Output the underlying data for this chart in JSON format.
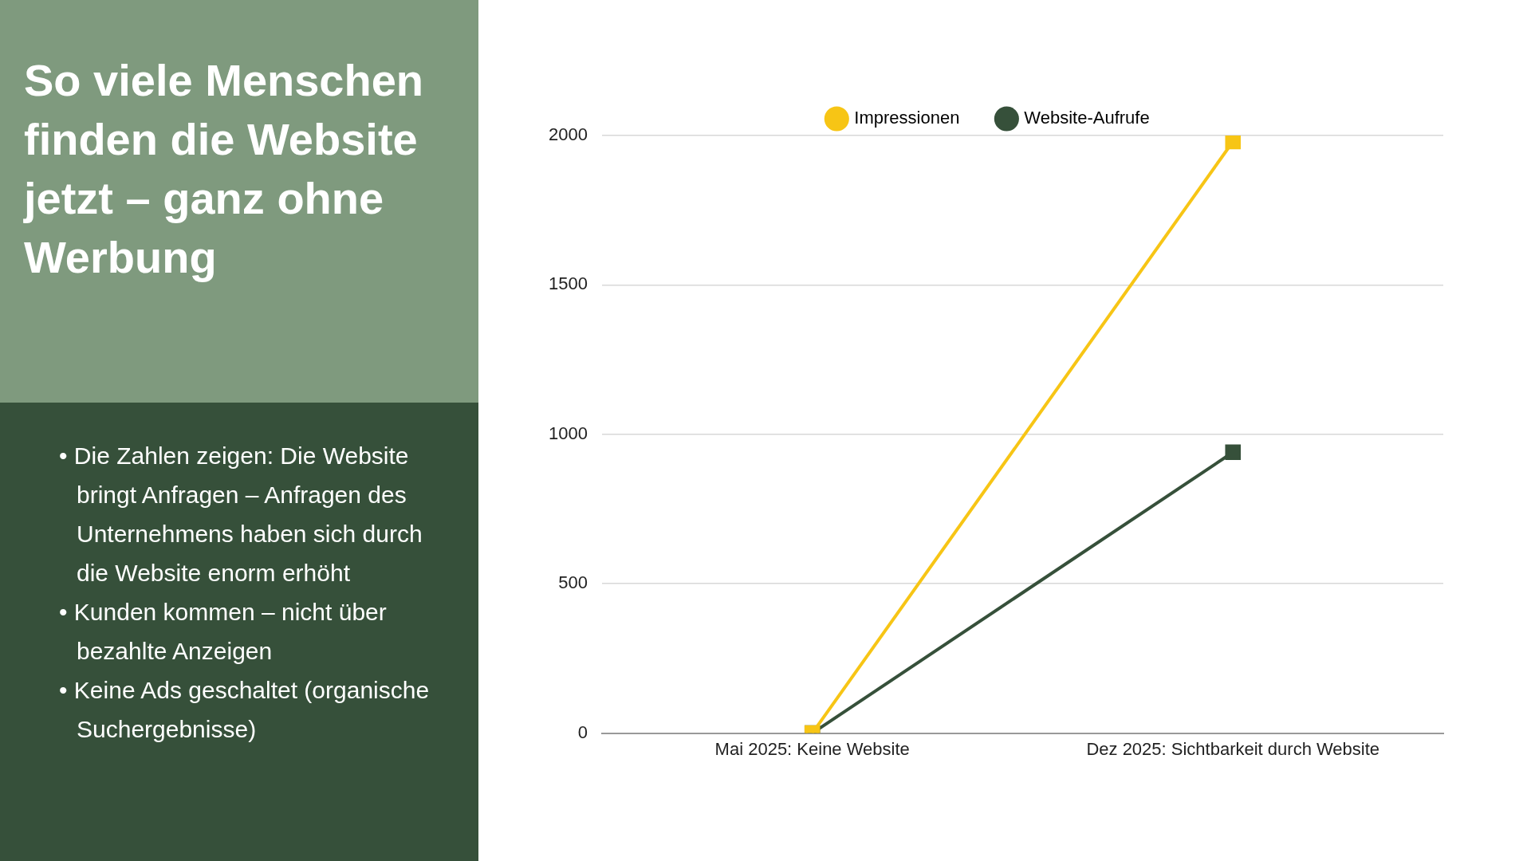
{
  "chart_data": {
    "type": "line",
    "title": "So viele Menschen finden die Website jetzt – ganz ohne Werbung",
    "annotations": [
      "• Die Zahlen zeigen: Die Website bringt Anfragen – Anfragen des Unternehmens haben sich durch die Website enorm erhöht",
      "• Kunden kommen – nicht über bezahlte Anzeigen",
      "• Keine Ads geschaltet (organische Suchergebnisse)"
    ],
    "categories": [
      "Mai 2025: Keine Website",
      "Dez 2025: Sichtbarkeit durch Website"
    ],
    "series": [
      {
        "name": "Impressionen",
        "color": "#f7c515",
        "values": [
          0,
          1980
        ]
      },
      {
        "name": "Website-Aufrufe",
        "color": "#36503a",
        "values": [
          0,
          940
        ]
      }
    ],
    "ylim": [
      0,
      2000
    ],
    "yticks": [
      0,
      500,
      1000,
      1500,
      2000
    ],
    "grid": "y",
    "legend": "top",
    "marker": "square",
    "line_style": "solid"
  }
}
